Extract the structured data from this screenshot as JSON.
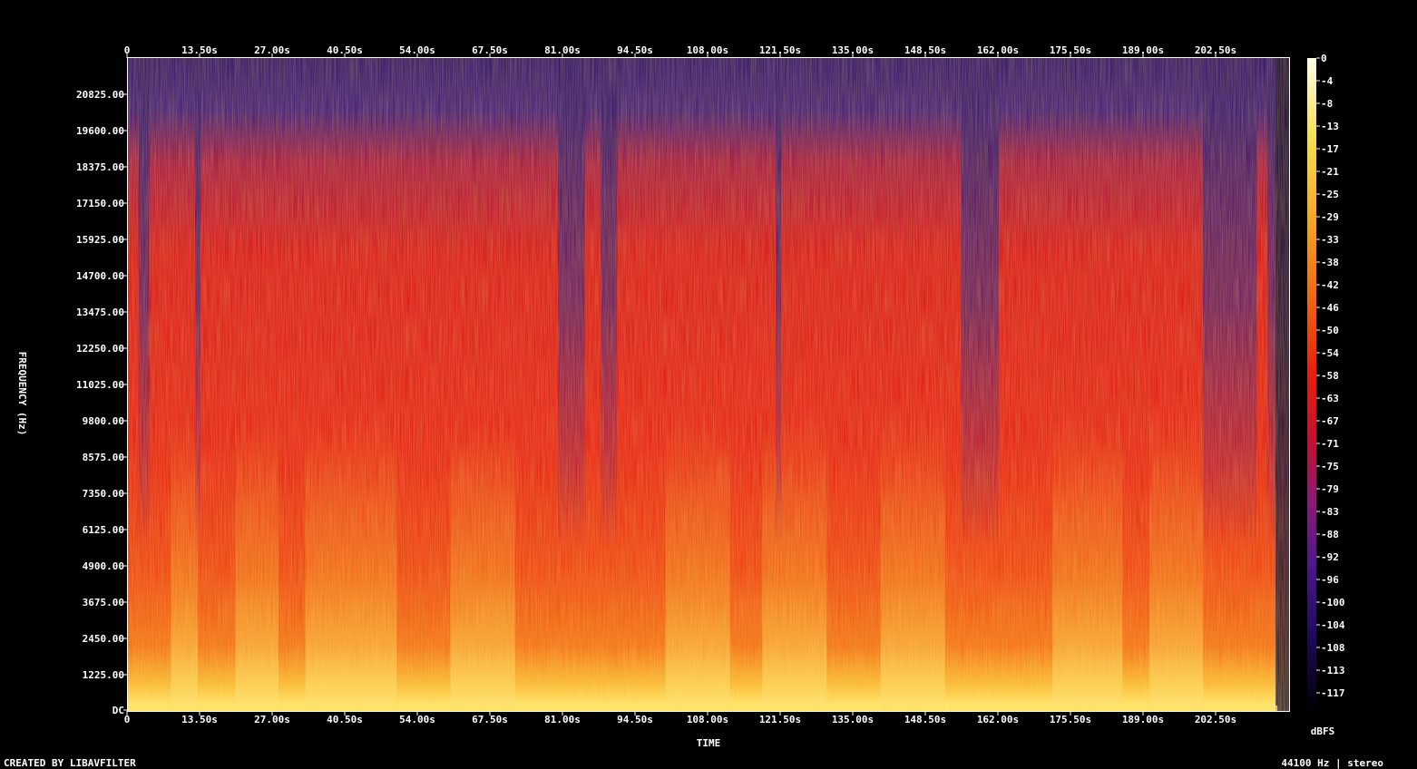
{
  "chart_data": {
    "type": "heatmap",
    "title": "",
    "xlabel": "TIME",
    "ylabel": "FREQUENCY (Hz)",
    "colorbar_label": "dBFS",
    "footer_left": "CREATED BY LIBAVFILTER",
    "footer_right": "44100 Hz | stereo",
    "x_ticks": [
      "0",
      "13.50s",
      "27.00s",
      "40.50s",
      "54.00s",
      "67.50s",
      "81.00s",
      "94.50s",
      "108.00s",
      "121.50s",
      "135.00s",
      "148.50s",
      "162.00s",
      "175.50s",
      "189.00s",
      "202.50s"
    ],
    "y_ticks": [
      "20825.00",
      "19600.00",
      "18375.00",
      "17150.00",
      "15925.00",
      "14700.00",
      "13475.00",
      "12250.00",
      "11025.00",
      "9800.00",
      "8575.00",
      "7350.00",
      "6125.00",
      "4900.00",
      "3675.00",
      "2450.00",
      "1225.00",
      "DC"
    ],
    "colorbar_ticks": [
      "0",
      "-4",
      "-8",
      "-13",
      "-17",
      "-21",
      "-25",
      "-29",
      "-33",
      "-38",
      "-42",
      "-46",
      "-50",
      "-54",
      "-58",
      "-63",
      "-67",
      "-71",
      "-75",
      "-79",
      "-83",
      "-88",
      "-92",
      "-96",
      "-100",
      "-104",
      "-108",
      "-113",
      "-117"
    ],
    "xlim": [
      0,
      216
    ],
    "ylim": [
      0,
      22050
    ],
    "zlim": [
      -120,
      0
    ],
    "colormap": [
      "#000000",
      "#0c0840",
      "#2b0a6e",
      "#5a1a8a",
      "#9a1a6a",
      "#d0102a",
      "#e8200a",
      "#f06010",
      "#f5a020",
      "#f8d840",
      "#fffde0"
    ],
    "bright_bands_s": [
      [
        8,
        13
      ],
      [
        20,
        28
      ],
      [
        33,
        50
      ],
      [
        60,
        72
      ],
      [
        100,
        112
      ],
      [
        118,
        130
      ],
      [
        140,
        152
      ],
      [
        172,
        185
      ],
      [
        190,
        200
      ]
    ],
    "dark_gaps_s": [
      [
        2,
        4
      ],
      [
        12.5,
        13.5
      ],
      [
        80,
        85
      ],
      [
        88,
        91
      ],
      [
        120.5,
        121.5
      ],
      [
        155,
        162
      ],
      [
        200,
        210
      ],
      [
        212,
        216
      ]
    ]
  }
}
